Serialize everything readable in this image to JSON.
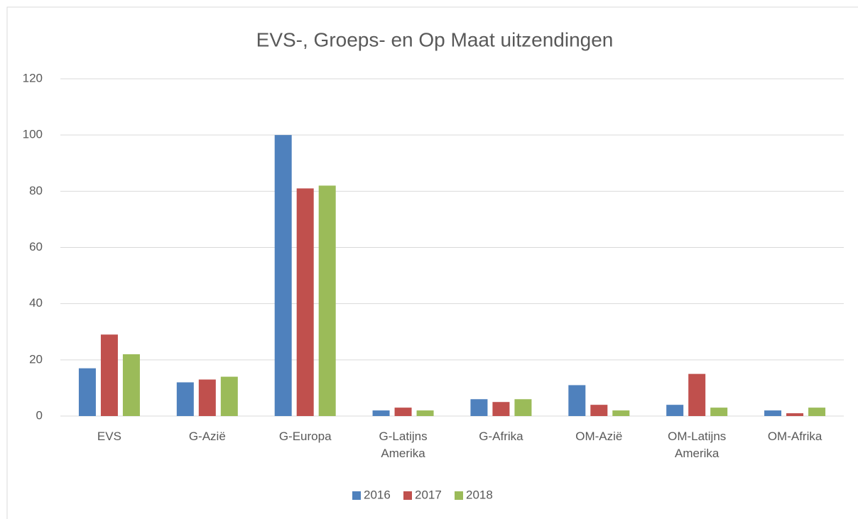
{
  "chart_data": {
    "type": "bar",
    "title": "EVS-, Groeps- en Op Maat uitzendingen",
    "categories": [
      "EVS",
      "G-Azië",
      "G-Europa",
      "G-Latijns Amerika",
      "G-Afrika",
      "OM-Azië",
      "OM-Latijns Amerika",
      "OM-Afrika"
    ],
    "series": [
      {
        "name": "2016",
        "color": "#4f81bd",
        "values": [
          17,
          12,
          100,
          2,
          6,
          11,
          4,
          2
        ]
      },
      {
        "name": "2017",
        "color": "#c0504d",
        "values": [
          29,
          13,
          81,
          3,
          5,
          4,
          15,
          1
        ]
      },
      {
        "name": "2018",
        "color": "#9bbb59",
        "values": [
          22,
          14,
          82,
          2,
          6,
          2,
          3,
          3
        ]
      }
    ],
    "ylim": [
      0,
      120
    ],
    "yticks": [
      0,
      20,
      40,
      60,
      80,
      100,
      120
    ],
    "grid": true,
    "legend": "bottom"
  }
}
